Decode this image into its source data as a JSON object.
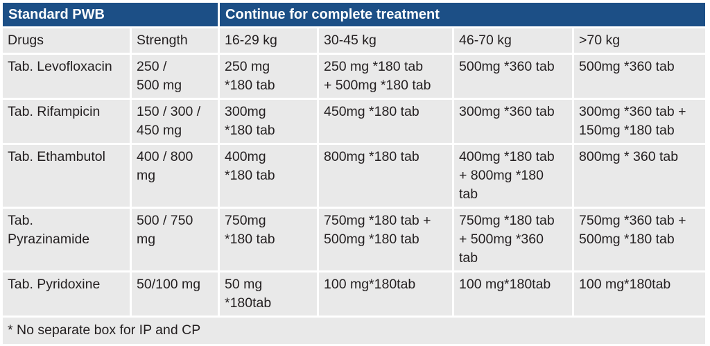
{
  "header": {
    "left": "Standard PWB",
    "right": "Continue for complete treatment"
  },
  "columns": [
    "Drugs",
    "Strength",
    "16-29 kg",
    "30-45 kg",
    "46-70 kg",
    ">70 kg"
  ],
  "rows": [
    {
      "drug": "Tab. Levofloxacin",
      "strength": " 250 /\n500 mg",
      "w16_29": "250 mg\n*180 tab",
      "w30_45": "250 mg *180 tab\n+ 500mg *180 tab",
      "w46_70": "500mg *360 tab",
      "w70": "500mg *360 tab"
    },
    {
      "drug": "Tab. Rifampicin",
      "strength": " 150 / 300 /\n450 mg",
      "w16_29": " 300mg\n*180 tab",
      "w30_45": "450mg *180 tab",
      "w46_70": "300mg *360 tab",
      "w70": "300mg *360 tab +\n150mg *180 tab"
    },
    {
      "drug": "Tab. Ethambutol",
      "strength": " 400 / 800\nmg",
      "w16_29": "400mg\n*180 tab",
      "w30_45": "800mg *180 tab",
      "w46_70": "400mg *180 tab\n+ 800mg *180\ntab",
      "w70": "800mg * 360 tab"
    },
    {
      "drug": "Tab.\nPyrazinamide",
      "strength": " 500 / 750\nmg",
      "w16_29": "750mg\n*180 tab",
      "w30_45": "750mg *180 tab +\n500mg *180 tab",
      "w46_70": "750mg *180 tab\n+ 500mg *360\ntab",
      "w70": "750mg *360 tab +\n500mg *180 tab"
    },
    {
      "drug": "Tab. Pyridoxine",
      "strength": "50/100 mg",
      "w16_29": "50 mg\n*180tab",
      "w30_45": "100 mg*180tab",
      "w46_70": "100 mg*180tab",
      "w70": "100 mg*180tab"
    }
  ],
  "footnote": "* No separate box for IP and CP",
  "colors": {
    "header_bg": "#1c4f86",
    "header_text": "#ffffff",
    "cell_bg": "#e9e9e9"
  }
}
